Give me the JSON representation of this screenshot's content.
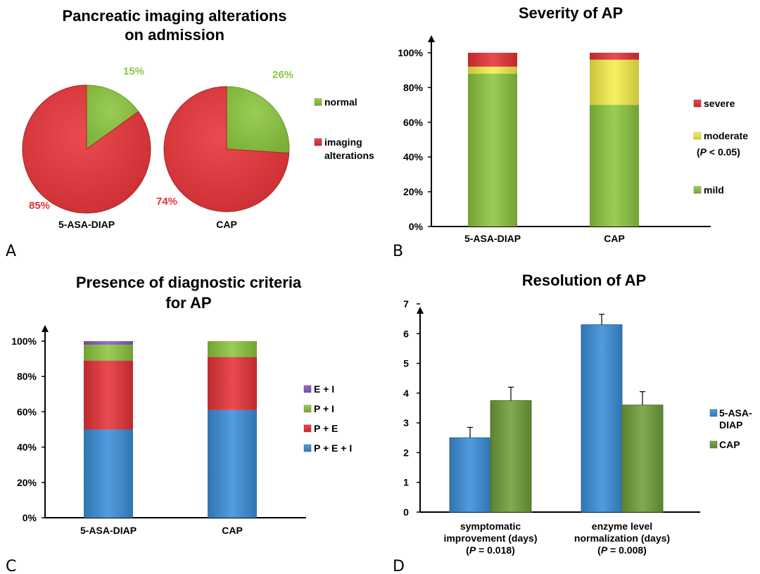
{
  "colors": {
    "green": "#8cc63f",
    "red": "#e63338",
    "yellow": "#f5ef4a",
    "purple": "#8a5cc4",
    "blue": "#3a8fd8",
    "dark_green": "#6f9e3a",
    "pct_green": "#8cc63f",
    "pct_red": "#e63338"
  },
  "chart_data": [
    {
      "panel": "A",
      "type": "pie",
      "title": [
        "Pancreatic imaging alterations",
        "on admission"
      ],
      "legend": [
        "normal",
        "imaging alterations"
      ],
      "legend_lines": [
        [
          "normal"
        ],
        [
          "imaging",
          "alterations"
        ]
      ],
      "legend_colors": [
        "green",
        "red"
      ],
      "legend_position": "right",
      "pies": [
        {
          "name": "5-ASA-DIAP",
          "values": [
            15,
            85
          ],
          "labels": [
            "15%",
            "85%"
          ]
        },
        {
          "name": "CAP",
          "values": [
            26,
            74
          ],
          "labels": [
            "26%",
            "74%"
          ]
        }
      ]
    },
    {
      "panel": "B",
      "type": "bar",
      "stacked": true,
      "title": [
        "Severity of AP"
      ],
      "categories": [
        "5-ASA-DIAP",
        "CAP"
      ],
      "yticks": [
        "0%",
        "20%",
        "40%",
        "60%",
        "80%",
        "100%"
      ],
      "ylim": [
        0,
        100
      ],
      "series": [
        {
          "name": "mild",
          "color": "green",
          "values": [
            88,
            70
          ]
        },
        {
          "name": "moderate",
          "color": "yellow",
          "values": [
            4,
            26
          ]
        },
        {
          "name": "severe",
          "color": "red",
          "values": [
            8,
            4
          ]
        }
      ],
      "legend_order": [
        2,
        1,
        0
      ],
      "legend_extra": {
        "1": "(P < 0.05)"
      },
      "legend_position": "right"
    },
    {
      "panel": "C",
      "type": "bar",
      "stacked": true,
      "title": [
        "Presence of diagnostic criteria",
        "for AP"
      ],
      "categories": [
        "5-ASA-DIAP",
        "CAP"
      ],
      "yticks": [
        "0%",
        "20%",
        "40%",
        "60%",
        "80%",
        "100%"
      ],
      "ylim": [
        0,
        100
      ],
      "series": [
        {
          "name": "P + E + I",
          "color": "blue",
          "values": [
            50,
            61
          ]
        },
        {
          "name": "P + E",
          "color": "red",
          "values": [
            39,
            30
          ]
        },
        {
          "name": "P + I",
          "color": "green",
          "values": [
            9,
            9
          ]
        },
        {
          "name": "E + I",
          "color": "purple",
          "values": [
            2,
            0
          ]
        }
      ],
      "legend_order": [
        3,
        2,
        1,
        0
      ],
      "legend_position": "right"
    },
    {
      "panel": "D",
      "type": "bar",
      "title": [
        "Resolution of AP"
      ],
      "categories": [
        {
          "lines": [
            "symptomatic",
            "improvement (days)"
          ],
          "p": "(P = 0.018)"
        },
        {
          "lines": [
            "enzyme level",
            "normalization (days)"
          ],
          "p": "(P = 0.008)"
        }
      ],
      "yticks": [
        "0",
        "1",
        "2",
        "3",
        "4",
        "5",
        "6",
        "7"
      ],
      "ylim": [
        0,
        7
      ],
      "series": [
        {
          "name": "5-ASA-DIAP",
          "color": "blue",
          "values": [
            2.5,
            6.3
          ],
          "errors": [
            0.35,
            0.35
          ]
        },
        {
          "name": "CAP",
          "color": "dark_green",
          "values": [
            3.75,
            3.6
          ],
          "errors": [
            0.45,
            0.45
          ]
        }
      ],
      "legend_lines": [
        [
          "5-ASA-",
          "DIAP"
        ],
        [
          "CAP"
        ]
      ],
      "legend_position": "right"
    }
  ],
  "panel_labels": [
    "A",
    "B",
    "C",
    "D"
  ]
}
